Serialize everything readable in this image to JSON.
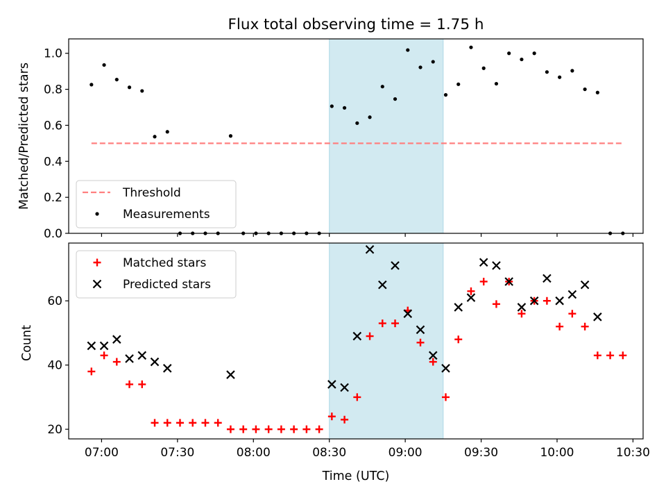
{
  "chart_data": [
    {
      "type": "scatter",
      "title": "Flux total observing time = 1.75 h",
      "xlabel": "",
      "ylabel": "Matched/Predicted stars",
      "xlim": [
        "06:47",
        "10:34"
      ],
      "ylim": [
        0,
        1.08
      ],
      "xticks": [
        "07:00",
        "07:30",
        "08:00",
        "08:30",
        "09:00",
        "09:30",
        "10:00",
        "10:30"
      ],
      "yticks": [
        "0.0",
        "0.2",
        "0.4",
        "0.6",
        "0.8",
        "1.0"
      ],
      "shaded_interval": [
        "08:30",
        "09:15"
      ],
      "shade_color": "#add8e6",
      "legend": {
        "position": "lower-left",
        "entries": [
          "Threshold",
          "Measurements"
        ]
      },
      "series": [
        {
          "name": "Threshold",
          "style": "dashed-line",
          "color": "#ff7f7f",
          "x": [
            "06:56",
            "10:26"
          ],
          "y": [
            0.5,
            0.5
          ]
        },
        {
          "name": "Measurements",
          "style": "dot",
          "color": "#000000",
          "x": [
            "06:56",
            "07:01",
            "07:06",
            "07:11",
            "07:16",
            "07:21",
            "07:26",
            "07:31",
            "07:36",
            "07:41",
            "07:46",
            "07:51",
            "07:56",
            "08:01",
            "08:06",
            "08:11",
            "08:16",
            "08:21",
            "08:26",
            "08:31",
            "08:36",
            "08:41",
            "08:46",
            "08:51",
            "08:56",
            "09:01",
            "09:06",
            "09:11",
            "09:16",
            "09:21",
            "09:26",
            "09:31",
            "09:36",
            "09:41",
            "09:46",
            "09:51",
            "09:56",
            "10:01",
            "10:06",
            "10:11",
            "10:16",
            "10:21",
            "10:26"
          ],
          "y": [
            0.826,
            0.935,
            0.854,
            0.811,
            0.791,
            0.537,
            0.564,
            0,
            0,
            0,
            0,
            0.541,
            0,
            0,
            0,
            0,
            0,
            0,
            0,
            0.706,
            0.697,
            0.612,
            0.645,
            0.815,
            0.746,
            1.018,
            0.922,
            0.953,
            0.769,
            0.828,
            1.033,
            0.917,
            0.831,
            1.0,
            0.966,
            1.0,
            0.896,
            0.867,
            0.903,
            0.8,
            0.782,
            0,
            0
          ]
        }
      ]
    },
    {
      "type": "scatter",
      "title": "",
      "xlabel": "Time (UTC)",
      "ylabel": "Count",
      "xlim": [
        "06:47",
        "10:34"
      ],
      "ylim": [
        17,
        78
      ],
      "xticks": [
        "07:00",
        "07:30",
        "08:00",
        "08:30",
        "09:00",
        "09:30",
        "10:00",
        "10:30"
      ],
      "yticks": [
        "20",
        "40",
        "60"
      ],
      "shaded_interval": [
        "08:30",
        "09:15"
      ],
      "shade_color": "#add8e6",
      "legend": {
        "position": "upper-left",
        "entries": [
          "Matched stars",
          "Predicted stars"
        ]
      },
      "series": [
        {
          "name": "Matched stars",
          "marker": "plus",
          "color": "#ff0000",
          "x": [
            "06:56",
            "07:01",
            "07:06",
            "07:11",
            "07:16",
            "07:21",
            "07:26",
            "07:31",
            "07:36",
            "07:41",
            "07:46",
            "07:51",
            "07:56",
            "08:01",
            "08:06",
            "08:11",
            "08:16",
            "08:21",
            "08:26",
            "08:31",
            "08:36",
            "08:41",
            "08:46",
            "08:51",
            "08:56",
            "09:01",
            "09:06",
            "09:11",
            "09:16",
            "09:21",
            "09:26",
            "09:31",
            "09:36",
            "09:41",
            "09:46",
            "09:51",
            "09:56",
            "10:01",
            "10:06",
            "10:11",
            "10:16",
            "10:21",
            "10:26"
          ],
          "y": [
            38,
            43,
            41,
            34,
            34,
            22,
            22,
            22,
            22,
            22,
            22,
            20,
            20,
            20,
            20,
            20,
            20,
            20,
            20,
            24,
            23,
            30,
            49,
            53,
            53,
            57,
            47,
            41,
            30,
            48,
            63,
            66,
            59,
            66,
            56,
            60,
            60,
            52,
            56,
            52,
            43,
            43,
            43
          ]
        },
        {
          "name": "Predicted stars",
          "marker": "x",
          "color": "#000000",
          "x": [
            "06:56",
            "07:01",
            "07:06",
            "07:11",
            "07:16",
            "07:21",
            "07:26",
            "07:51",
            "08:31",
            "08:36",
            "08:41",
            "08:46",
            "08:51",
            "08:56",
            "09:01",
            "09:06",
            "09:11",
            "09:16",
            "09:21",
            "09:26",
            "09:31",
            "09:36",
            "09:41",
            "09:46",
            "09:51",
            "09:56",
            "10:01",
            "10:06",
            "10:11",
            "10:16"
          ],
          "y": [
            46,
            46,
            48,
            42,
            43,
            41,
            39,
            37,
            34,
            33,
            49,
            76,
            65,
            71,
            56,
            51,
            43,
            39,
            58,
            61,
            72,
            71,
            66,
            58,
            60,
            67,
            60,
            62,
            65,
            55
          ]
        }
      ]
    }
  ]
}
